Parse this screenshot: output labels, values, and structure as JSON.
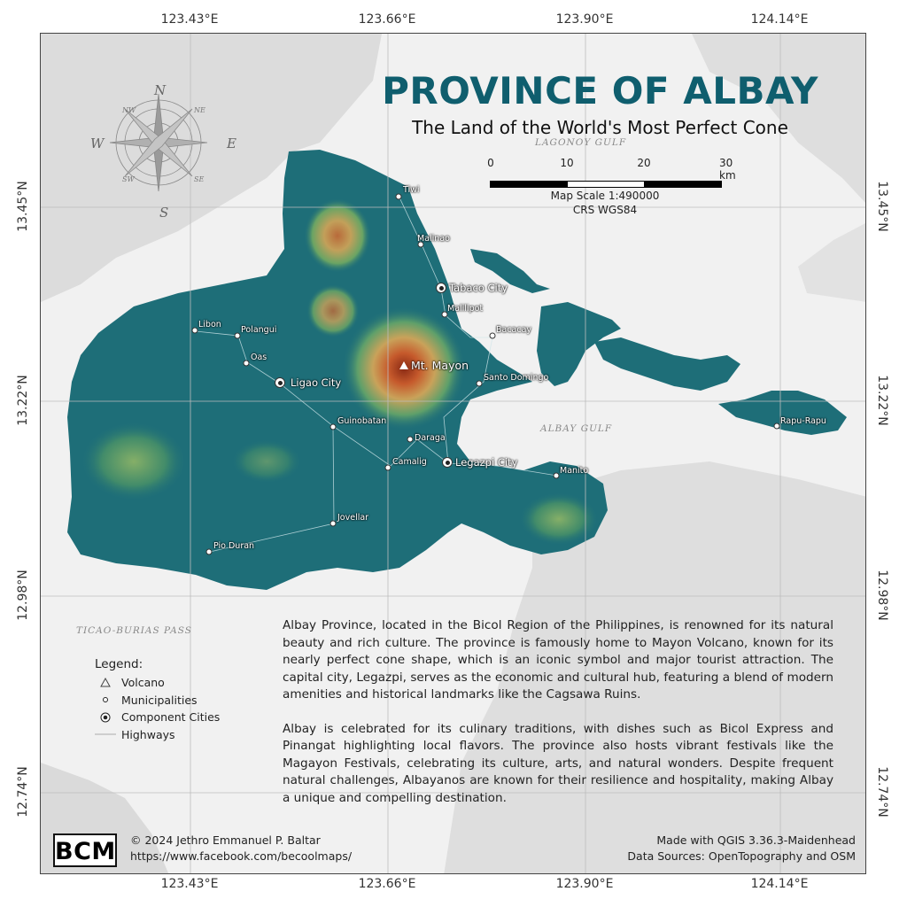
{
  "title": "PROVINCE OF ALBAY",
  "subtitle": "The Land of the World's Most Perfect Cone",
  "coords": {
    "top": [
      "123.43°E",
      "123.66°E",
      "123.90°E",
      "124.14°E"
    ],
    "bottom": [
      "123.43°E",
      "123.66°E",
      "123.90°E",
      "124.14°E"
    ],
    "left": [
      "13.45°N",
      "13.22°N",
      "12.98°N",
      "12.74°N"
    ],
    "right": [
      "13.45°N",
      "13.22°N",
      "12.98°N",
      "12.74°N"
    ]
  },
  "scale": {
    "ticks": [
      "0",
      "10",
      "20",
      "30 km"
    ],
    "ratio": "Map Scale 1:490000",
    "crs": "CRS WGS84"
  },
  "compass": {
    "n": "N",
    "s": "S",
    "e": "E",
    "w": "W",
    "nw": "NW",
    "ne": "NE",
    "sw": "SW",
    "se": "SE"
  },
  "seas": {
    "lagonoy": "LAGONOY GULF",
    "albay_gulf": "ALBAY GULF",
    "ticao": "TICAO-BURIAS PASS"
  },
  "volcano": "Mt. Mayon",
  "cities": [
    "Tabaco City",
    "Ligao City",
    "Legazpi City"
  ],
  "municipalities": [
    "Tiwi",
    "Malinao",
    "Malilipot",
    "Bacacay",
    "Libon",
    "Polangui",
    "Oas",
    "Santo Domingo",
    "Guinobatan",
    "Daraga",
    "Camalig",
    "Manito",
    "Rapu-Rapu",
    "Jovellar",
    "Pio Duran"
  ],
  "description": [
    "Albay Province, located in the Bicol Region of the Philippines, is renowned for its natural beauty and rich culture. The province is famously home to Mayon Volcano, known for its nearly perfect cone shape, which is an iconic symbol and major tourist attraction. The capital city, Legazpi, serves as the economic and cultural hub, featuring a blend of modern amenities and historical landmarks like the Cagsawa Ruins.",
    "Albay is celebrated for its culinary traditions, with dishes such as Bicol Express and Pinangat highlighting local flavors. The province also hosts vibrant festivals like the Magayon Festivals, celebrating its culture, arts, and natural wonders. Despite frequent natural challenges, Albayanos are known for their resilience and hospitality, making Albay a unique and compelling destination."
  ],
  "legend": {
    "title": "Legend:",
    "items": [
      "Volcano",
      "Municipalities",
      "Component Cities",
      "Highways"
    ]
  },
  "logo": "BCM",
  "credits": {
    "copyright": "© 2024 Jethro Emmanuel P. Baltar",
    "url": "https://www.facebook.com/becoolmaps/",
    "software": "Made with QGIS 3.36.3-Maidenhead",
    "sources": "Data Sources: OpenTopography and OSM"
  },
  "colors": {
    "title": "#0f5e6e",
    "land": "#1e6e78",
    "peak": "#b5401e",
    "sea": "#f1f1f1"
  }
}
